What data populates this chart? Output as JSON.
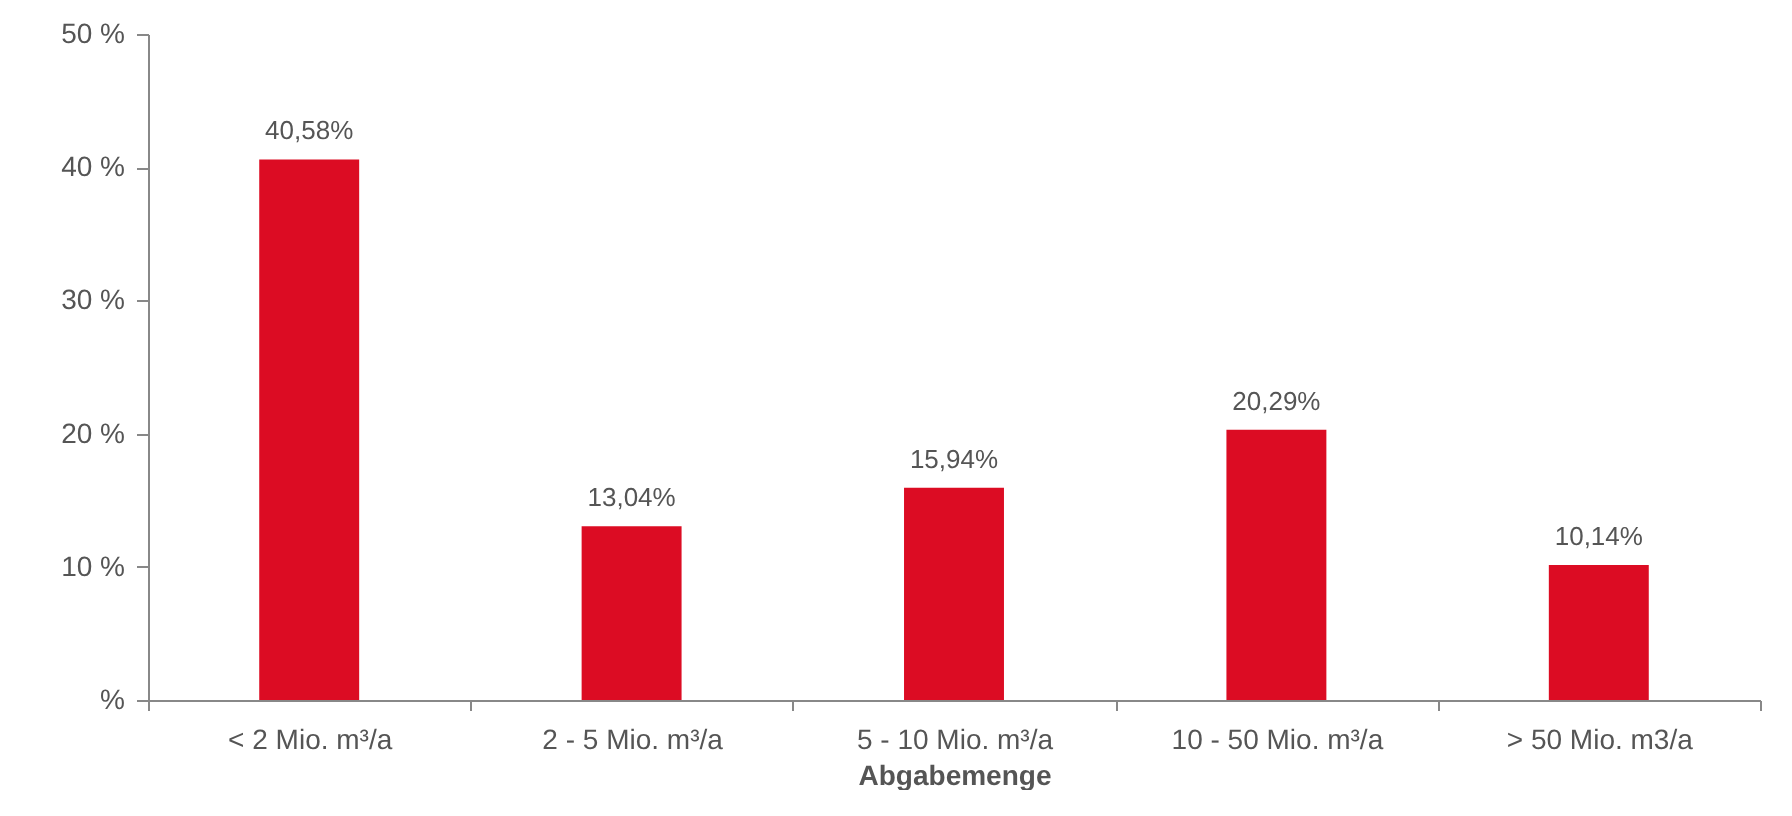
{
  "chart_data": {
    "type": "bar",
    "categories": [
      "< 2 Mio. m³/a",
      "2 - 5 Mio. m³/a",
      "5 - 10 Mio. m³/a",
      "10 - 50 Mio. m³/a",
      "> 50 Mio. m3/a"
    ],
    "values": [
      40.58,
      13.04,
      15.94,
      20.29,
      10.14
    ],
    "value_labels": [
      "40,58%",
      "13,04%",
      "15,94%",
      "20,29%",
      "10,14%"
    ],
    "color": "#dc0c23",
    "xlabel": "Abgabemenge",
    "ylim": [
      0,
      50
    ],
    "yticks": [
      {
        "value": 0,
        "label": "%"
      },
      {
        "value": 10,
        "label": "10 %"
      },
      {
        "value": 20,
        "label": "20 %"
      },
      {
        "value": 30,
        "label": "30 %"
      },
      {
        "value": 40,
        "label": "40 %"
      },
      {
        "value": 50,
        "label": "50 %"
      }
    ],
    "grid": false
  }
}
